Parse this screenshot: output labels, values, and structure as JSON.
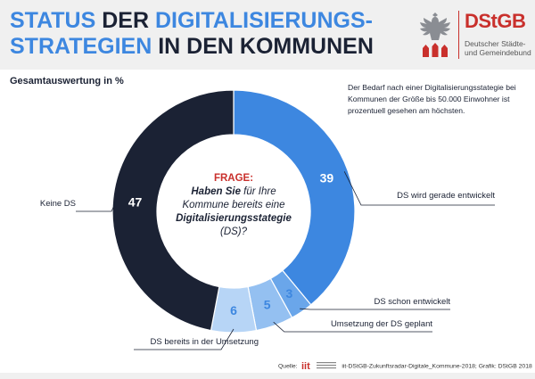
{
  "header": {
    "title_line1_part1": "STATUS ",
    "title_line1_part2": "DER ",
    "title_line1_part3": "DIGITALISIERUNGS-",
    "title_line2_part1": "STRATEGIEN ",
    "title_line2_part2": "IN DEN KOMMUNEN",
    "logo_main": "DStGB",
    "logo_sub_line1": "Deutscher Städte-",
    "logo_sub_line2": "und Gemeindebund"
  },
  "subtitle": "Gesamtauswertung in %",
  "note": "Der Bedarf nach einer Digitalisierungsstategie bei Kommunen der Größe bis 50.000 Einwohner ist prozentuell gesehen am höchsten.",
  "question": {
    "head": "FRAGE:",
    "part1": "Haben Sie",
    "part2": " für Ihre Kommune bereits eine ",
    "part3": "Digitalisierungsstategie",
    "part4": " (DS)?"
  },
  "source": {
    "label": "Quelle:",
    "logo_text": "iit",
    "text": "iit-DStGB-Zukunftsradar-Digitale_Kommune-2018; Grafik: DStGB 2018"
  },
  "colors": {
    "blue_main": "#3d87e0",
    "blue_mid": "#6aa6ea",
    "blue_light": "#94c0f1",
    "blue_pale": "#b7d5f6",
    "navy": "#1b2234",
    "red": "#c9302c"
  },
  "chart_data": {
    "type": "pie",
    "donut": true,
    "unit": "%",
    "slices": [
      {
        "label": "DS wird gerade entwickelt",
        "value": 39,
        "color": "#3d87e0"
      },
      {
        "label": "DS schon entwickelt",
        "value": 3,
        "color": "#6aa6ea"
      },
      {
        "label": "Umsetzung der DS geplant",
        "value": 5,
        "color": "#94c0f1"
      },
      {
        "label": "DS bereits in der Umsetzung",
        "value": 6,
        "color": "#b7d5f6"
      },
      {
        "label": "Keine DS",
        "value": 47,
        "color": "#1b2234"
      }
    ]
  }
}
